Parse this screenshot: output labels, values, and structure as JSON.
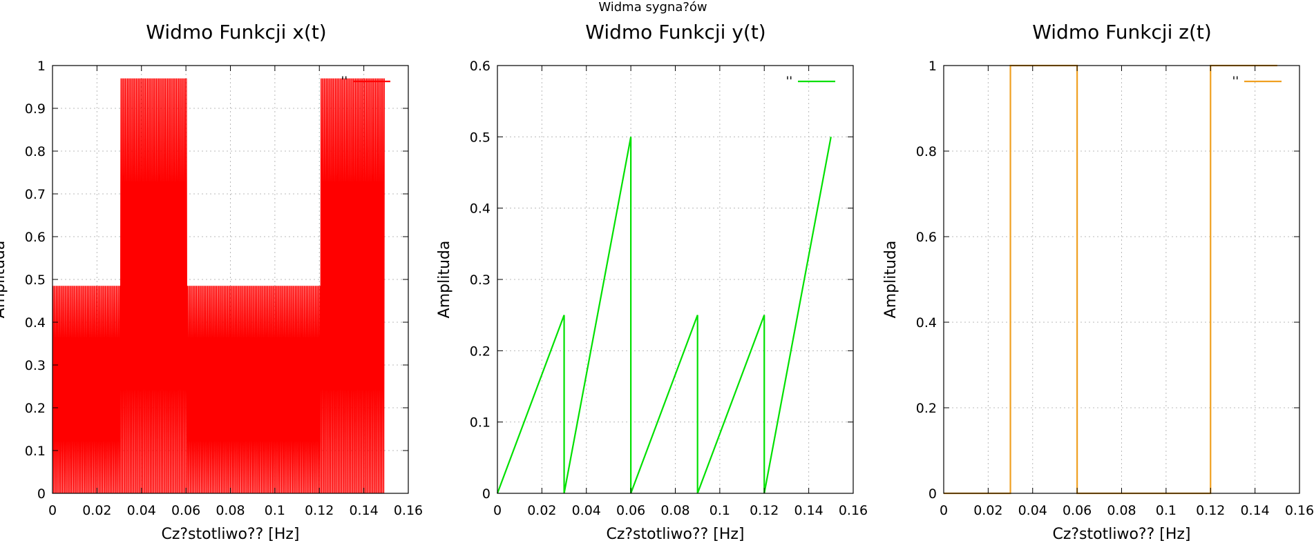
{
  "figure": {
    "suptitle": "Widma sygna?ów"
  },
  "chart_data": [
    {
      "type": "line",
      "title": "Widmo Funkcji x(t)",
      "xlabel": "Cz?stotliwo?? [Hz]",
      "ylabel": "Amplituda",
      "xlim": [
        0,
        0.16
      ],
      "ylim": [
        0,
        1
      ],
      "xticks": [
        0,
        0.02,
        0.04,
        0.06,
        0.08,
        0.1,
        0.12,
        0.14,
        0.16
      ],
      "yticks": [
        0,
        0.1,
        0.2,
        0.3,
        0.4,
        0.5,
        0.6,
        0.7,
        0.8,
        0.9,
        1
      ],
      "xtick_labels": [
        "0",
        "0.02",
        "0.04",
        "0.06",
        "0.08",
        "0.1",
        "0.12",
        "0.14",
        "0.16"
      ],
      "ytick_labels": [
        "0",
        "0.1",
        "0.2",
        "0.3",
        "0.4",
        "0.5",
        "0.6",
        "0.7",
        "0.8",
        "0.9",
        "1"
      ],
      "grid": true,
      "legend": "top-right",
      "color": "#ff0000",
      "series": [
        {
          "name": "''",
          "style": "oscillating",
          "x_end": 0.149,
          "step": 0.0005,
          "segments": [
            {
              "from": 0,
              "to": 0.03,
              "peak": 0.485
            },
            {
              "from": 0.03,
              "to": 0.06,
              "peak": 0.97
            },
            {
              "from": 0.06,
              "to": 0.12,
              "peak": 0.485
            },
            {
              "from": 0.12,
              "to": 0.149,
              "peak": 0.97
            }
          ]
        }
      ]
    },
    {
      "type": "line",
      "title": "Widmo Funkcji y(t)",
      "xlabel": "Cz?stotliwo?? [Hz]",
      "ylabel": "Amplituda",
      "xlim": [
        0,
        0.16
      ],
      "ylim": [
        0,
        0.6
      ],
      "xticks": [
        0,
        0.02,
        0.04,
        0.06,
        0.08,
        0.1,
        0.12,
        0.14,
        0.16
      ],
      "yticks": [
        0,
        0.1,
        0.2,
        0.3,
        0.4,
        0.5,
        0.6
      ],
      "xtick_labels": [
        "0",
        "0.02",
        "0.04",
        "0.06",
        "0.08",
        "0.1",
        "0.12",
        "0.14",
        "0.16"
      ],
      "ytick_labels": [
        "0",
        "0.1",
        "0.2",
        "0.3",
        "0.4",
        "0.5",
        "0.6"
      ],
      "grid": true,
      "legend": "top-right",
      "color": "#00e000",
      "series": [
        {
          "name": "''",
          "x": [
            0,
            0.03,
            0.03,
            0.06,
            0.06,
            0.09,
            0.09,
            0.12,
            0.12,
            0.15
          ],
          "y": [
            0,
            0.25,
            0,
            0.5,
            0,
            0.25,
            0,
            0.25,
            0,
            0.5
          ]
        }
      ]
    },
    {
      "type": "line",
      "title": "Widmo Funkcji z(t)",
      "xlabel": "Cz?stotliwo?? [Hz]",
      "ylabel": "Amplituda",
      "xlim": [
        0,
        0.16
      ],
      "ylim": [
        0,
        1
      ],
      "xticks": [
        0,
        0.02,
        0.04,
        0.06,
        0.08,
        0.1,
        0.12,
        0.14,
        0.16
      ],
      "yticks": [
        0,
        0.2,
        0.4,
        0.6,
        0.8,
        1
      ],
      "xtick_labels": [
        "0",
        "0.02",
        "0.04",
        "0.06",
        "0.08",
        "0.1",
        "0.12",
        "0.14",
        "0.16"
      ],
      "ytick_labels": [
        "0",
        "0.2",
        "0.4",
        "0.6",
        "0.8",
        "1"
      ],
      "grid": true,
      "legend": "top-right",
      "color": "#f0a020",
      "series": [
        {
          "name": "''",
          "x": [
            0,
            0.03,
            0.03,
            0.06,
            0.06,
            0.12,
            0.12,
            0.15
          ],
          "y": [
            0,
            0,
            1,
            1,
            0,
            0,
            1,
            1
          ]
        }
      ]
    }
  ]
}
